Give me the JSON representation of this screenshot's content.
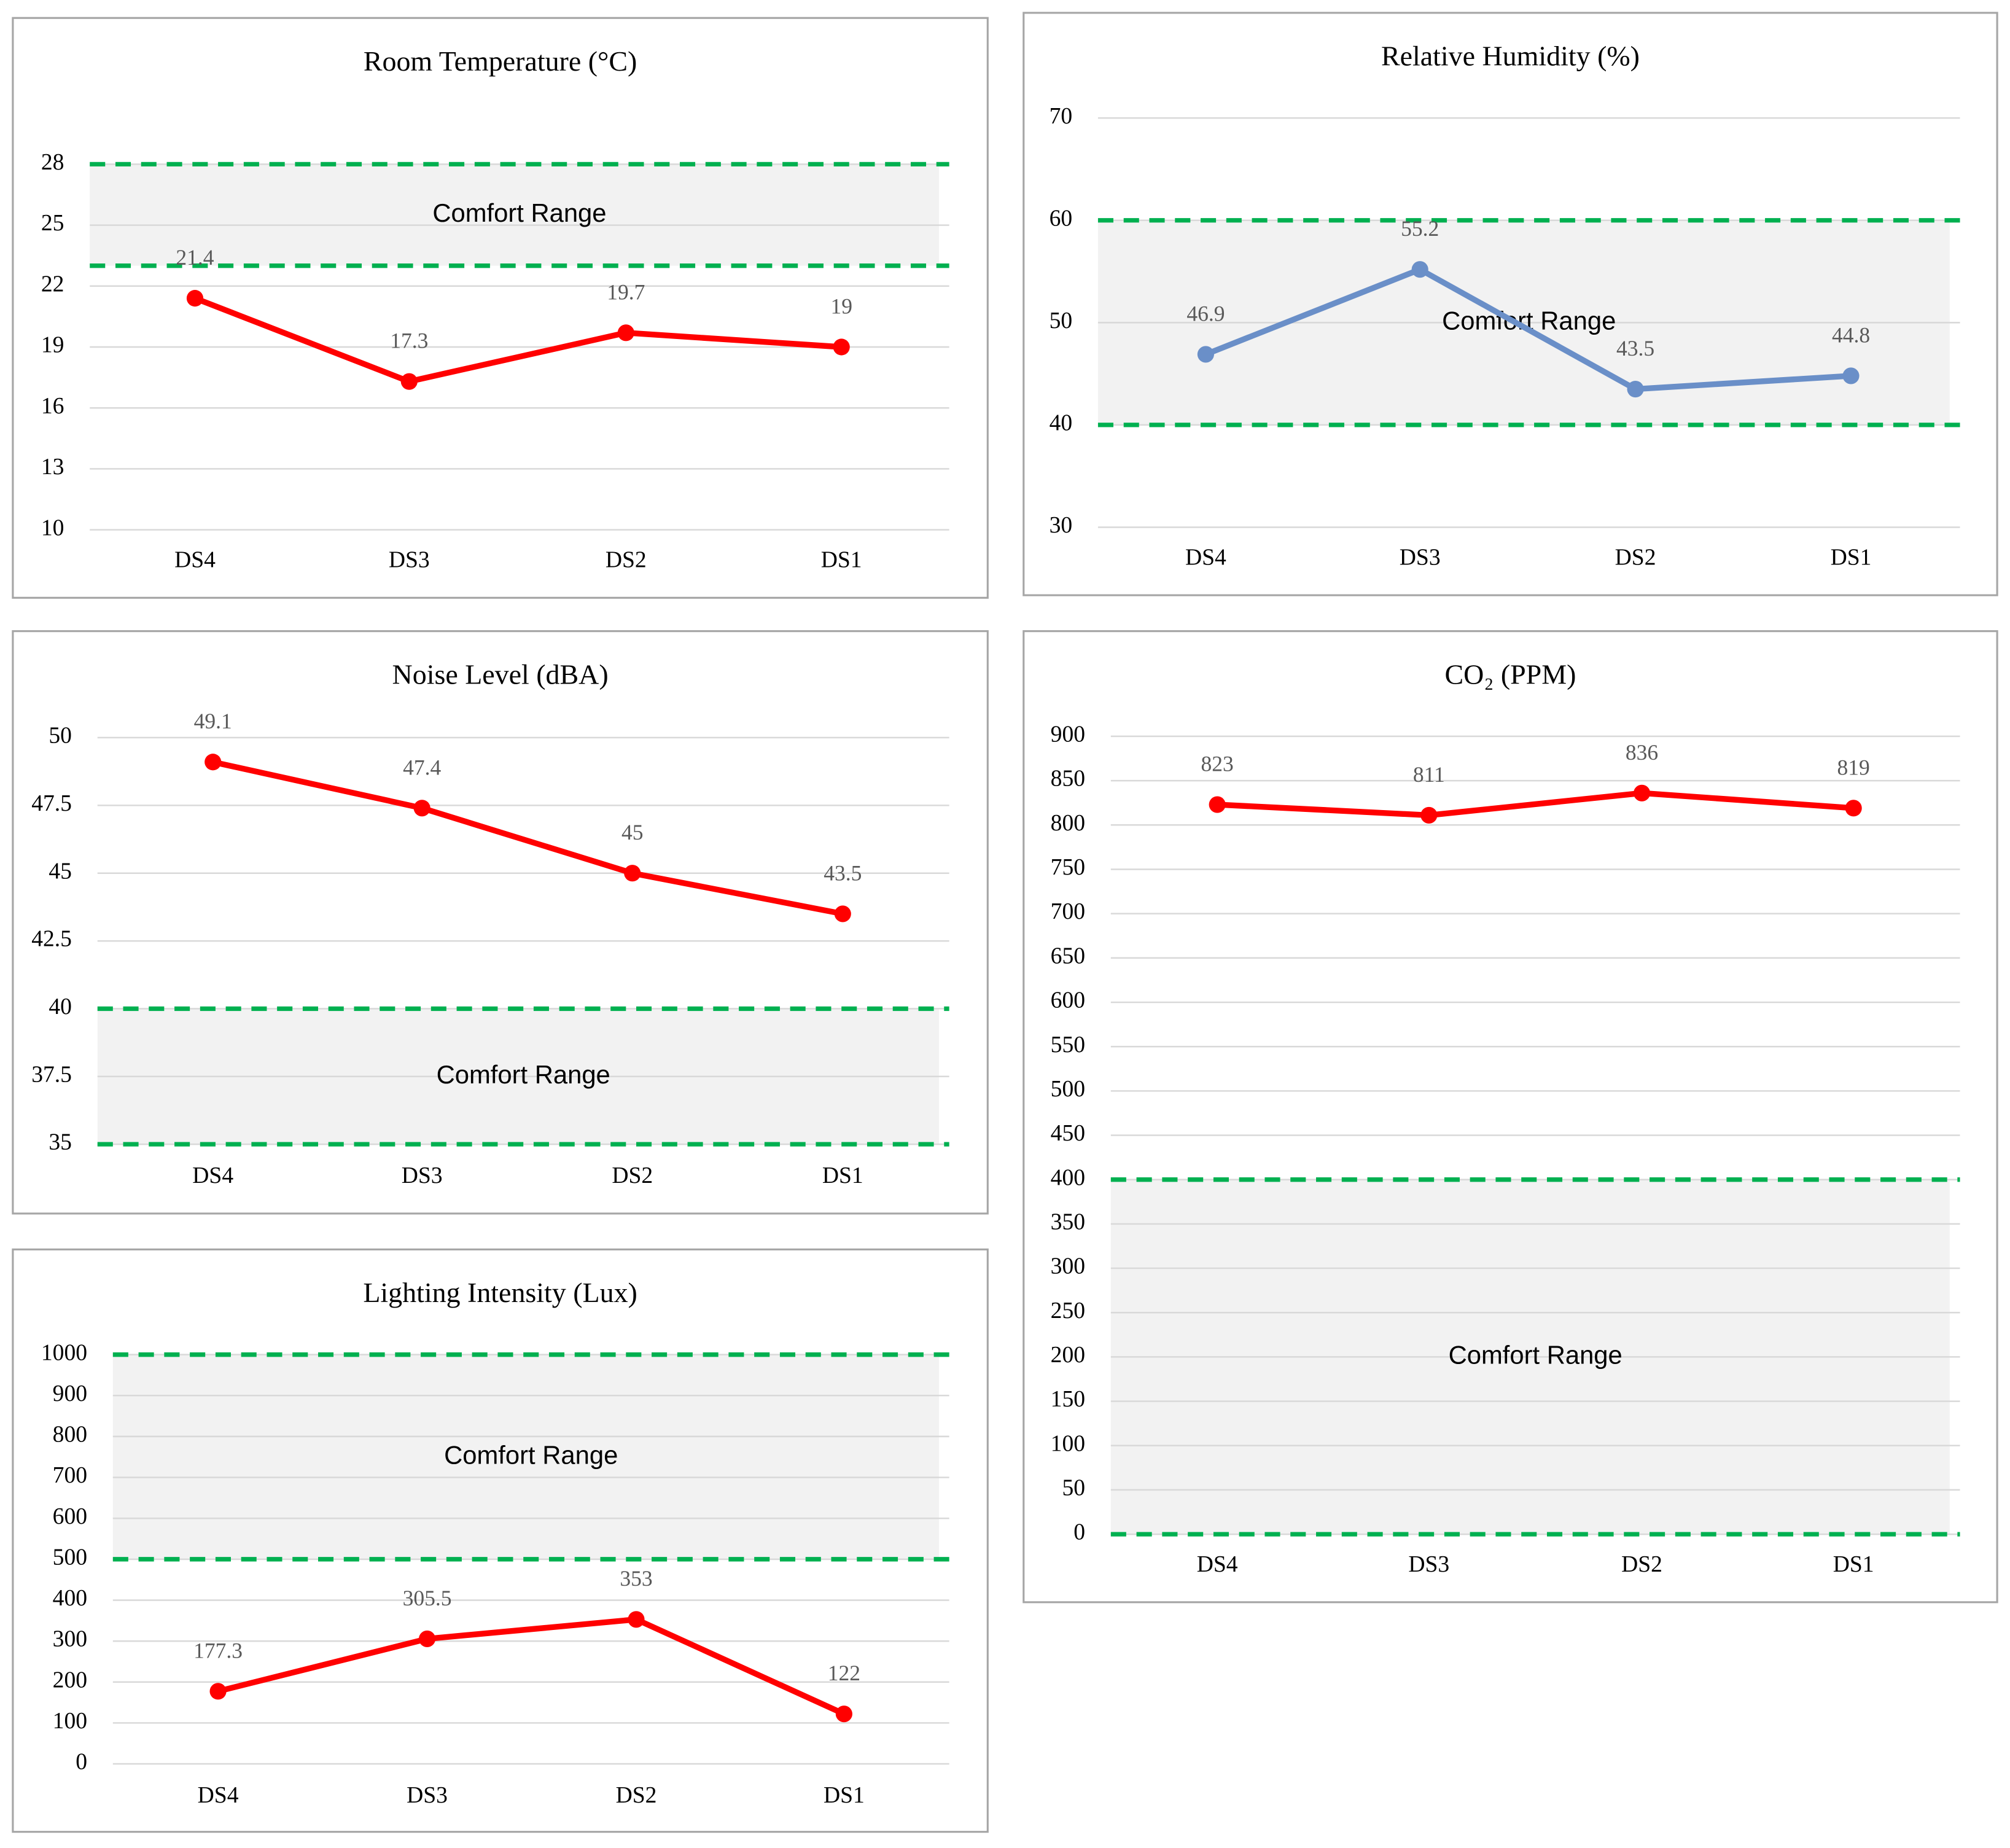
{
  "chart_data": [
    {
      "type": "line",
      "title": "Room Temperature (°C)",
      "categories": [
        "DS4",
        "DS3",
        "DS2",
        "DS1"
      ],
      "values": [
        21.4,
        17.3,
        19.7,
        19
      ],
      "color": "#ff0000",
      "ylim": [
        10,
        28
      ],
      "yticks": [
        10,
        13,
        16,
        19,
        22,
        25,
        28
      ],
      "grid": true,
      "comfort_range": [
        23,
        28
      ],
      "comfort_label": "Comfort Range",
      "comfort_color": "#00b050"
    },
    {
      "type": "line",
      "title": "Relative Humidity (%)",
      "categories": [
        "DS4",
        "DS3",
        "DS2",
        "DS1"
      ],
      "values": [
        46.9,
        55.2,
        43.5,
        44.8
      ],
      "color": "#6a8fc8",
      "ylim": [
        30,
        70
      ],
      "yticks": [
        30,
        40,
        50,
        60,
        70
      ],
      "grid": true,
      "comfort_range": [
        40,
        60
      ],
      "comfort_label": "Comfort Range",
      "comfort_color": "#00b050"
    },
    {
      "type": "line",
      "title": "Noise Level (dBA)",
      "categories": [
        "DS4",
        "DS3",
        "DS2",
        "DS1"
      ],
      "values": [
        49.1,
        47.4,
        45,
        43.5
      ],
      "color": "#ff0000",
      "ylim": [
        35,
        50
      ],
      "yticks": [
        35,
        37.5,
        40,
        42.5,
        45,
        47.5,
        50
      ],
      "grid": true,
      "comfort_range": [
        35,
        40
      ],
      "comfort_label": "Comfort Range",
      "comfort_color": "#00b050"
    },
    {
      "type": "line",
      "title": "CO₂ (PPM)",
      "categories": [
        "DS4",
        "DS3",
        "DS2",
        "DS1"
      ],
      "values": [
        823,
        811,
        836,
        819
      ],
      "color": "#ff0000",
      "ylim": [
        0,
        900
      ],
      "yticks": [
        0,
        50,
        100,
        150,
        200,
        250,
        300,
        350,
        400,
        450,
        500,
        550,
        600,
        650,
        700,
        750,
        800,
        850,
        900
      ],
      "grid": true,
      "comfort_range": [
        0,
        400
      ],
      "comfort_label": "Comfort Range",
      "comfort_color": "#00b050"
    },
    {
      "type": "line",
      "title": "Lighting Intensity (Lux)",
      "categories": [
        "DS4",
        "DS3",
        "DS2",
        "DS1"
      ],
      "values": [
        177.3,
        305.5,
        353,
        122
      ],
      "color": "#ff0000",
      "ylim": [
        0,
        1000
      ],
      "yticks": [
        0,
        100,
        200,
        300,
        400,
        500,
        600,
        700,
        800,
        900,
        1000
      ],
      "grid": true,
      "comfort_range": [
        500,
        1000
      ],
      "comfort_label": "Comfort Range",
      "comfort_color": "#00b050"
    }
  ]
}
